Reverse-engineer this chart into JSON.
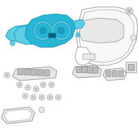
{
  "bg_color": "#ffffff",
  "hc_light": "#5ecde8",
  "hc_mid": "#29b5d5",
  "hc_dark": "#1a9ab8",
  "gray_line": "#999999",
  "gray_fill": "#e8e8e8",
  "gray_mid": "#bbbbbb",
  "gray_dark": "#777777",
  "white": "#ffffff"
}
